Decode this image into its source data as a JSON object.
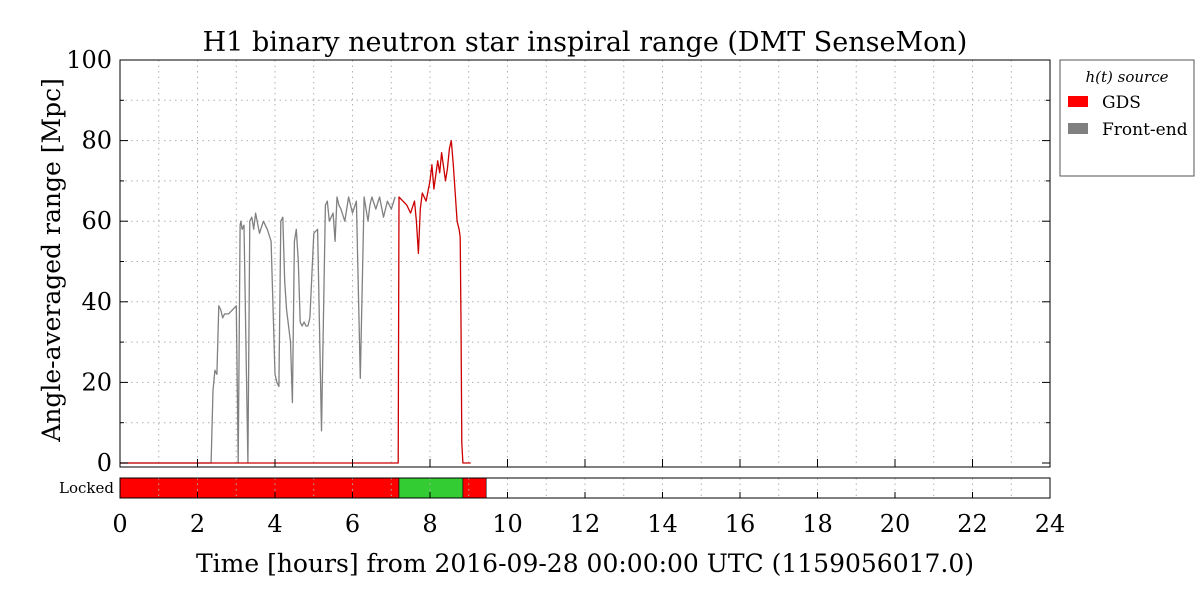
{
  "chart_data": {
    "type": "line",
    "title": "H1 binary neutron star inspiral range (DMT SenseMon)",
    "xlabel": "Time [hours] from 2016-09-28 00:00:00 UTC (1159056017.0)",
    "ylabel": "Angle-averaged range [Mpc]",
    "xlim": [
      0,
      24
    ],
    "ylim": [
      0,
      100
    ],
    "xticks": [
      "0",
      "2",
      "4",
      "6",
      "8",
      "10",
      "12",
      "14",
      "16",
      "18",
      "20",
      "22",
      "24"
    ],
    "yticks": [
      "0",
      "20",
      "40",
      "60",
      "80",
      "100"
    ],
    "grid": true,
    "legend": {
      "title": "h(t) source",
      "placement": "outside-right",
      "entries": [
        {
          "label": "GDS",
          "color": "#ff0000"
        },
        {
          "label": "Front-end",
          "color": "#808080"
        }
      ]
    },
    "series": [
      {
        "name": "GDS",
        "color": "#cc0000",
        "x": [
          0,
          7.15,
          7.18,
          7.2,
          7.3,
          7.4,
          7.5,
          7.6,
          7.65,
          7.7,
          7.75,
          7.8,
          7.9,
          8.0,
          8.05,
          8.1,
          8.2,
          8.25,
          8.3,
          8.4,
          8.45,
          8.5,
          8.55,
          8.6,
          8.65,
          8.7,
          8.75,
          8.78,
          8.8,
          8.82,
          8.85,
          8.88,
          9.0,
          9.05
        ],
        "y": [
          0,
          0,
          0,
          66,
          65,
          64,
          62,
          65,
          60,
          52,
          63,
          67,
          65,
          70,
          74,
          68,
          75,
          72,
          77,
          70,
          73,
          78,
          80,
          74,
          67,
          60,
          58,
          56,
          35,
          5,
          0,
          0,
          0,
          0
        ]
      },
      {
        "name": "Front-end",
        "color": "#808080",
        "x": [
          0,
          2.35,
          2.4,
          2.45,
          2.5,
          2.55,
          2.6,
          2.65,
          2.7,
          2.8,
          2.9,
          3.0,
          3.05,
          3.1,
          3.12,
          3.15,
          3.2,
          3.3,
          3.35,
          3.4,
          3.45,
          3.5,
          3.6,
          3.7,
          3.8,
          3.9,
          3.95,
          4.0,
          4.05,
          4.1,
          4.15,
          4.2,
          4.25,
          4.3,
          4.4,
          4.45,
          4.5,
          4.55,
          4.6,
          4.65,
          4.7,
          4.75,
          4.8,
          4.85,
          4.9,
          5.0,
          5.1,
          5.2,
          5.3,
          5.35,
          5.4,
          5.5,
          5.55,
          5.6,
          5.65,
          5.7,
          5.8,
          5.9,
          6.0,
          6.1,
          6.2,
          6.3,
          6.4,
          6.45,
          6.5,
          6.6,
          6.7,
          6.8,
          6.9,
          7.0,
          7.1
        ],
        "y": [
          0,
          0,
          18,
          23,
          22,
          39,
          38,
          36,
          37,
          37,
          38,
          39,
          0,
          59,
          60,
          58,
          59,
          0,
          60,
          61,
          58,
          62,
          57,
          60,
          58,
          55,
          38,
          22,
          20,
          19,
          60,
          61,
          45,
          38,
          30,
          15,
          55,
          58,
          50,
          35,
          34,
          35,
          34,
          34,
          36,
          57,
          58,
          8,
          64,
          65,
          60,
          62,
          55,
          66,
          64,
          63,
          60,
          66,
          62,
          65,
          21,
          66,
          60,
          64,
          66,
          63,
          66,
          61,
          65,
          63,
          66
        ]
      }
    ],
    "segments": {
      "label": "Locked",
      "bars": [
        {
          "start": 0,
          "end": 7.2,
          "color": "#ff0000"
        },
        {
          "start": 7.2,
          "end": 8.85,
          "color": "#33cc33"
        },
        {
          "start": 8.85,
          "end": 9.45,
          "color": "#ff0000"
        }
      ]
    }
  }
}
